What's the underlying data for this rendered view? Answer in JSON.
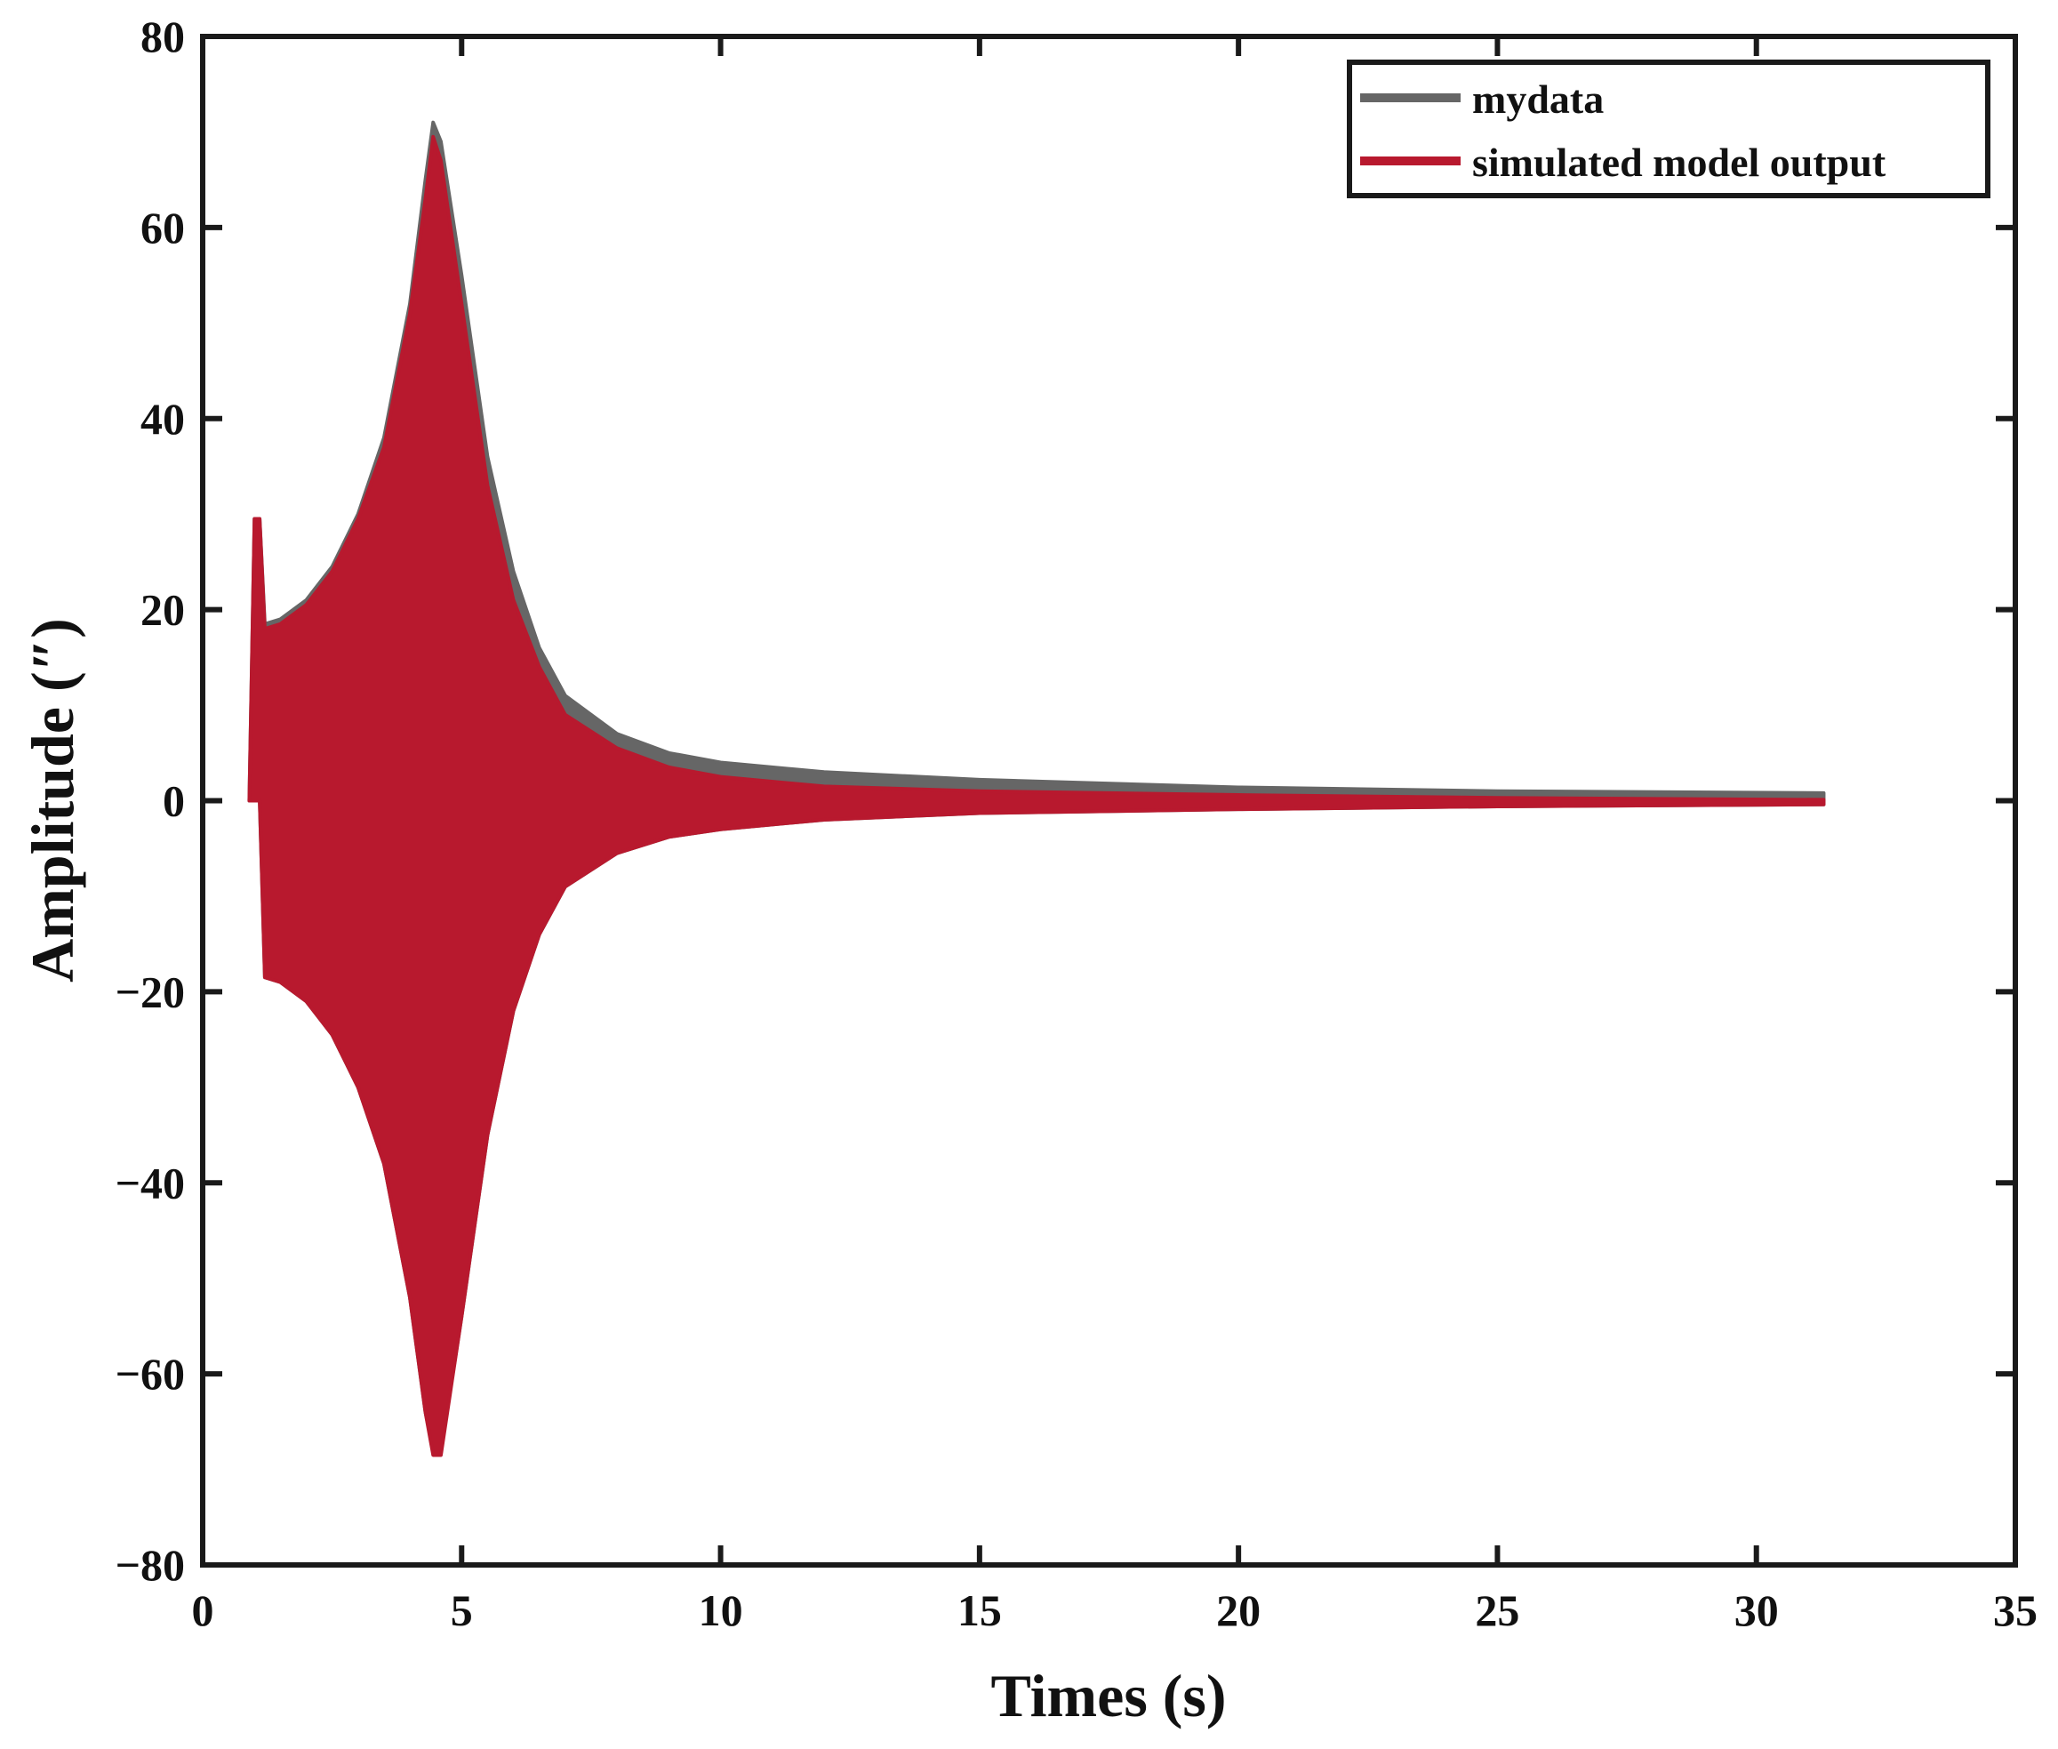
{
  "chart_data": {
    "type": "line",
    "title": "",
    "xlabel": "Times (s)",
    "ylabel": "Amplitude (″)",
    "xlim": [
      0,
      35
    ],
    "ylim": [
      -80,
      80
    ],
    "xticks": [
      0,
      5,
      10,
      15,
      20,
      25,
      30,
      35
    ],
    "yticks": [
      80,
      60,
      40,
      20,
      0,
      -20,
      -40,
      -60,
      -80
    ],
    "xtick_labels": [
      "0",
      "5",
      "10",
      "15",
      "20",
      "25",
      "30",
      "35"
    ],
    "ytick_labels": [
      "80",
      "60",
      "40",
      "20",
      "0",
      "−20",
      "−40",
      "−60",
      "−80"
    ],
    "grid": false,
    "legend": {
      "position": "top-right"
    },
    "series": [
      {
        "name": "mydata",
        "color": "#666666",
        "x": [
          0.9,
          1.0,
          1.1,
          1.2,
          1.5,
          2.0,
          2.5,
          3.0,
          3.5,
          4.0,
          4.3,
          4.45,
          4.6,
          5.0,
          5.5,
          6.0,
          6.5,
          7.0,
          8.0,
          9.0,
          10.0,
          12.0,
          15.0,
          20.0,
          25.0,
          31.3
        ],
        "upper": [
          0,
          29.5,
          29.5,
          18.5,
          19,
          21,
          24.5,
          30,
          38,
          52,
          65,
          71,
          69,
          55,
          36,
          24,
          16,
          11,
          7,
          5,
          4,
          3,
          2.2,
          1.4,
          1.0,
          0.8
        ],
        "lower": [
          0,
          0,
          0,
          -18.5,
          -19,
          -21,
          -24.5,
          -30,
          -38,
          -52,
          -64,
          -68,
          -68,
          -54,
          -35,
          -22,
          -14,
          -9,
          -5.5,
          -3.8,
          -3,
          -2,
          -1.3,
          -0.9,
          -0.6,
          -0.4
        ]
      },
      {
        "name": "simulated model output",
        "color": "#b8192e",
        "x": [
          0.9,
          1.0,
          1.1,
          1.2,
          1.5,
          2.0,
          2.5,
          3.0,
          3.5,
          4.0,
          4.3,
          4.45,
          4.6,
          5.0,
          5.5,
          6.0,
          6.5,
          7.0,
          8.0,
          9.0,
          10.0,
          12.0,
          15.0,
          20.0,
          25.0,
          31.3
        ],
        "upper": [
          0,
          29.5,
          29.5,
          18,
          18.5,
          20.5,
          24,
          29.5,
          37,
          51,
          63,
          69.5,
          67,
          52,
          33,
          21,
          14,
          9,
          5.5,
          3.5,
          2.5,
          1.5,
          1.0,
          0.6,
          0.3,
          0.1
        ],
        "lower": [
          0,
          0,
          0,
          -18.5,
          -19,
          -21,
          -24.5,
          -30,
          -38,
          -52,
          -64,
          -68.5,
          -68.5,
          -54,
          -35,
          -22,
          -14,
          -9,
          -5.5,
          -3.8,
          -3,
          -2,
          -1.3,
          -0.9,
          -0.6,
          -0.4
        ]
      }
    ]
  }
}
